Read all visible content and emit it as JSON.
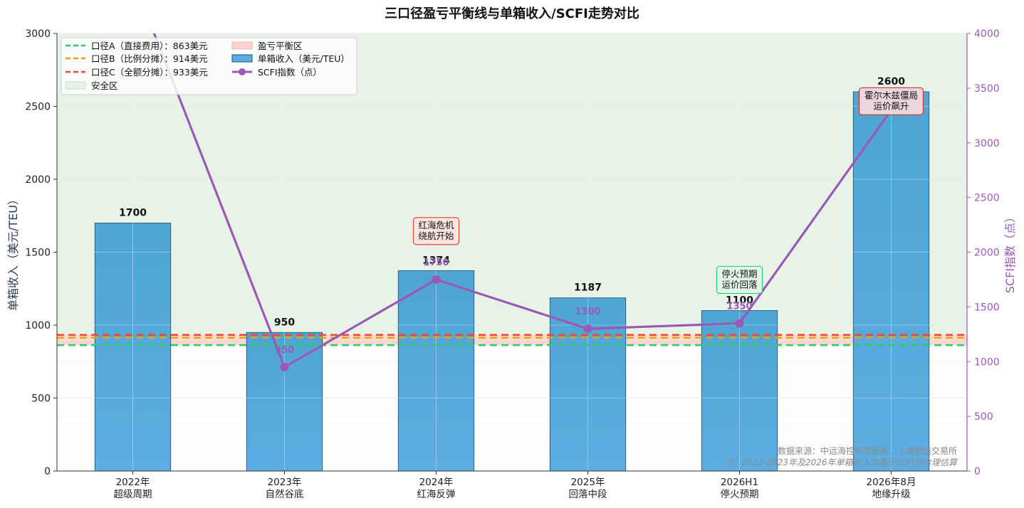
{
  "title": "三口径盈亏平衡线与单箱收入/SCFI走势对比",
  "colors": {
    "bar": "#5dade2",
    "bar_edge": "#1b4f72",
    "scfi": "#9b59b6",
    "line_a": "#2ecc71",
    "line_b": "#f39c12",
    "line_c": "#e74c3c",
    "safe_zone": "#e8f3e8",
    "breakeven_zone": "#f9d9cf"
  },
  "chart_data": {
    "type": "bar",
    "categories": [
      "2022年\n超级周期",
      "2023年\n自然谷底",
      "2024年\n红海反弹",
      "2025年\n回落中段",
      "2026H1\n停火预期",
      "2026年8月\n地缘升级"
    ],
    "series": [
      {
        "name": "单箱收入（美元/TEU）",
        "axis": "left",
        "type": "bar",
        "values": [
          1700,
          950,
          1374,
          1187,
          1100,
          2600
        ]
      },
      {
        "name": "SCFI指数（点）",
        "axis": "right",
        "type": "line",
        "values": [
          4500,
          950,
          1750,
          1300,
          1350,
          3300
        ]
      }
    ],
    "scfi_labels": [
      "",
      "950",
      "1750",
      "1300",
      "1350",
      "3300"
    ],
    "bar_labels": [
      "1700",
      "950",
      "1374",
      "1187",
      "1100",
      "2600"
    ],
    "reference_lines": [
      {
        "name": "口径A（直接费用）：863美元",
        "value": 863,
        "color": "#2ecc71"
      },
      {
        "name": "口径B（比例分摊）：914美元",
        "value": 914,
        "color": "#f39c12"
      },
      {
        "name": "口径C（全额分摊）：933美元",
        "value": 933,
        "color": "#e74c3c"
      }
    ],
    "zones": [
      {
        "name": "安全区",
        "from": 933,
        "to": 3000
      },
      {
        "name": "盈亏平衡区",
        "from": 863,
        "to": 933
      }
    ],
    "ylabel": "单箱收入（美元/TEU）",
    "y2label": "SCFI指数（点）",
    "ylim": [
      0,
      3000
    ],
    "y2lim": [
      0,
      4000
    ],
    "yticks": [
      0,
      500,
      1000,
      1500,
      2000,
      2500,
      3000
    ],
    "y2ticks": [
      0,
      500,
      1000,
      1500,
      2000,
      2500,
      3000,
      3500,
      4000
    ],
    "grid": true,
    "legend_position": "top-left",
    "annotations": [
      {
        "text": "红海危机\n绕航开始",
        "x": 2.5,
        "y": 1645,
        "color": "#e74c3c",
        "bg": "#fbe5de"
      },
      {
        "text": "停火预期\n运价回落",
        "x": 4.5,
        "y": 1310,
        "color": "#2ecc71",
        "bg": "#e3f5e8"
      },
      {
        "text": "霍尔木兹僵局\n运价飙升",
        "x": 5.5,
        "y": 2535,
        "color": "#c0392b",
        "bg": "#ecd5dd"
      }
    ],
    "source_note": "数据来源：中远海控年度报告、上海航运交易所",
    "footnote": "注：2022-2023年及2026年单箱收入为基于SCFI的合理估算"
  }
}
